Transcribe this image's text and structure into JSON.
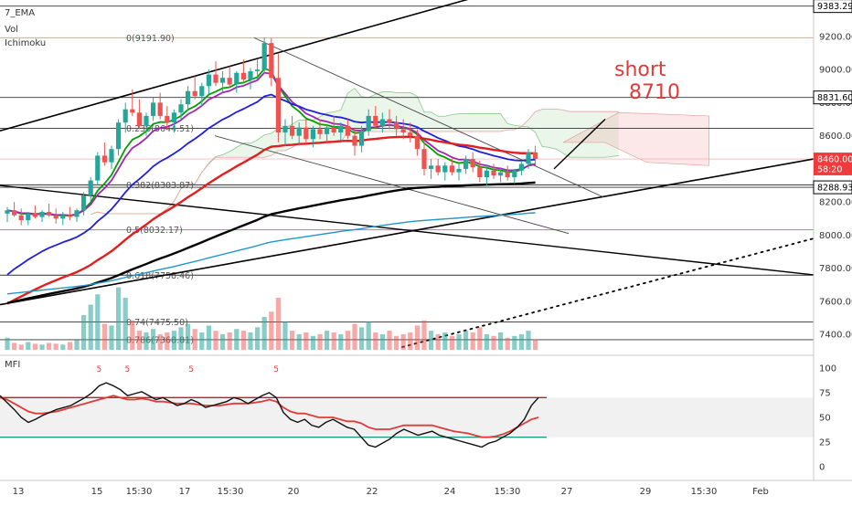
{
  "legend": [
    "7_EMA",
    "Vol",
    "Ichimoku"
  ],
  "mfi_label": "MFI",
  "note": [
    "short",
    "8710"
  ],
  "colors": {
    "candle_up": "#26a69a",
    "candle_down": "#ef5350",
    "ema_fast": "#00a000",
    "ema_mid": "#9c27b0",
    "ema_blue": "#1f1fe0",
    "ema_red": "#e01f1f",
    "ema_black": "#000000",
    "ema_teal": "#2196c8",
    "fib_red": "#f28b82",
    "fib_purple": "#c36bd1",
    "note": "#e03b3b"
  },
  "chart_data": [
    {
      "type": "candlestick",
      "price_axis_ticks": [
        7400,
        7600,
        7800,
        8000,
        8200,
        8400,
        8600,
        8800,
        9000,
        9200
      ],
      "price_axis_tick_labels": [
        "7400.00",
        "7600.00",
        "7800.00",
        "8000.00",
        "8200.00",
        "8400.00",
        "8600.00",
        "8800.00",
        "9000.00",
        "9200.00"
      ],
      "ylim": [
        7280,
        9420
      ],
      "price_tags": [
        {
          "value": 9383.29,
          "label": "9383.29",
          "style": "outline"
        },
        {
          "value": 8831.6,
          "label": "8831.60",
          "style": "outline"
        },
        {
          "value": 8460.0,
          "label": "8460.00",
          "style": "red"
        },
        {
          "value": 8400.0,
          "label": "58:20",
          "style": "red"
        },
        {
          "value": 8288.93,
          "label": "8288.93",
          "style": "outline"
        }
      ],
      "time_axis_labels": [
        "13",
        "15",
        "15:30",
        "17",
        "15:30",
        "20",
        "22",
        "24",
        "15:30",
        "27",
        "29",
        "15:30",
        "Feb"
      ],
      "fib_levels": [
        {
          "ratio": "0",
          "value": 9191.9,
          "label": "0(9191.90)"
        },
        {
          "ratio": "0.236",
          "value": 8644.51,
          "label": "0.236(8644.51)"
        },
        {
          "ratio": "0.382",
          "value": 8303.87,
          "label": "0.382(8303.87)"
        },
        {
          "ratio": "0.5",
          "value": 8032.17,
          "label": "0.5(8032.17)"
        },
        {
          "ratio": "0.618",
          "value": 7758.46,
          "label": "0.618(7758.46)"
        },
        {
          "ratio": "0.74",
          "value": 7475.5,
          "label": "0.74(7475.50)"
        },
        {
          "ratio": "0.786",
          "value": 7368.81,
          "label": "0.786(7368.81)"
        }
      ],
      "candles": [
        [
          8130,
          8170,
          8080,
          8150
        ],
        [
          8150,
          8200,
          8110,
          8120
        ],
        [
          8120,
          8160,
          8060,
          8090
        ],
        [
          8090,
          8140,
          8060,
          8130
        ],
        [
          8130,
          8180,
          8100,
          8110
        ],
        [
          8110,
          8150,
          8080,
          8140
        ],
        [
          8140,
          8190,
          8110,
          8120
        ],
        [
          8120,
          8160,
          8070,
          8100
        ],
        [
          8100,
          8140,
          8060,
          8120
        ],
        [
          8120,
          8170,
          8090,
          8110
        ],
        [
          8110,
          8160,
          8080,
          8150
        ],
        [
          8150,
          8260,
          8120,
          8240
        ],
        [
          8240,
          8350,
          8200,
          8330
        ],
        [
          8330,
          8500,
          8300,
          8480
        ],
        [
          8480,
          8560,
          8420,
          8440
        ],
        [
          8440,
          8540,
          8400,
          8520
        ],
        [
          8520,
          8700,
          8480,
          8680
        ],
        [
          8680,
          8800,
          8620,
          8760
        ],
        [
          8760,
          8880,
          8720,
          8740
        ],
        [
          8740,
          8820,
          8640,
          8660
        ],
        [
          8660,
          8740,
          8600,
          8720
        ],
        [
          8720,
          8830,
          8690,
          8800
        ],
        [
          8800,
          8860,
          8700,
          8720
        ],
        [
          8720,
          8780,
          8640,
          8680
        ],
        [
          8680,
          8760,
          8620,
          8740
        ],
        [
          8740,
          8820,
          8700,
          8790
        ],
        [
          8790,
          8900,
          8750,
          8870
        ],
        [
          8870,
          8960,
          8820,
          8840
        ],
        [
          8840,
          8920,
          8780,
          8900
        ],
        [
          8900,
          9000,
          8850,
          8970
        ],
        [
          8970,
          9050,
          8900,
          8920
        ],
        [
          8920,
          8990,
          8860,
          8950
        ],
        [
          8950,
          9020,
          8890,
          8910
        ],
        [
          8910,
          8990,
          8860,
          8980
        ],
        [
          8980,
          9060,
          8930,
          8940
        ],
        [
          8940,
          9010,
          8880,
          8990
        ],
        [
          8990,
          9060,
          8940,
          9000
        ],
        [
          9000,
          9191.9,
          8980,
          9160
        ],
        [
          9160,
          9190,
          8900,
          8950
        ],
        [
          8950,
          9100,
          8560,
          8620
        ],
        [
          8620,
          8700,
          8540,
          8660
        ],
        [
          8660,
          8720,
          8580,
          8600
        ],
        [
          8600,
          8680,
          8540,
          8650
        ],
        [
          8650,
          8700,
          8560,
          8580
        ],
        [
          8580,
          8660,
          8530,
          8640
        ],
        [
          8640,
          8700,
          8580,
          8610
        ],
        [
          8610,
          8670,
          8560,
          8650
        ],
        [
          8650,
          8720,
          8600,
          8620
        ],
        [
          8620,
          8680,
          8570,
          8660
        ],
        [
          8660,
          8700,
          8580,
          8600
        ],
        [
          8600,
          8650,
          8480,
          8540
        ],
        [
          8540,
          8660,
          8500,
          8630
        ],
        [
          8630,
          8760,
          8600,
          8720
        ],
        [
          8720,
          8780,
          8640,
          8660
        ],
        [
          8660,
          8740,
          8620,
          8700
        ],
        [
          8700,
          8760,
          8640,
          8680
        ],
        [
          8680,
          8720,
          8600,
          8640
        ],
        [
          8640,
          8700,
          8580,
          8620
        ],
        [
          8620,
          8680,
          8560,
          8600
        ],
        [
          8600,
          8640,
          8480,
          8520
        ],
        [
          8520,
          8560,
          8360,
          8400
        ],
        [
          8400,
          8460,
          8340,
          8420
        ],
        [
          8420,
          8460,
          8360,
          8380
        ],
        [
          8380,
          8440,
          8330,
          8420
        ],
        [
          8420,
          8460,
          8360,
          8380
        ],
        [
          8380,
          8430,
          8330,
          8400
        ],
        [
          8400,
          8480,
          8370,
          8460
        ],
        [
          8460,
          8500,
          8380,
          8410
        ],
        [
          8410,
          8450,
          8320,
          8350
        ],
        [
          8350,
          8420,
          8300,
          8390
        ],
        [
          8390,
          8430,
          8340,
          8360
        ],
        [
          8360,
          8410,
          8320,
          8380
        ],
        [
          8380,
          8420,
          8330,
          8350
        ],
        [
          8350,
          8400,
          8310,
          8390
        ],
        [
          8390,
          8450,
          8360,
          8430
        ],
        [
          8430,
          8520,
          8400,
          8500
        ],
        [
          8500,
          8540,
          8420,
          8460
        ]
      ],
      "volumes": [
        14,
        8,
        6,
        9,
        7,
        6,
        8,
        7,
        6,
        9,
        11,
        40,
        52,
        64,
        30,
        28,
        72,
        60,
        34,
        22,
        20,
        24,
        18,
        20,
        22,
        26,
        30,
        24,
        20,
        28,
        22,
        18,
        20,
        24,
        22,
        20,
        26,
        38,
        44,
        60,
        32,
        22,
        18,
        20,
        16,
        18,
        22,
        20,
        18,
        22,
        30,
        26,
        32,
        20,
        18,
        22,
        16,
        18,
        20,
        28,
        34,
        22,
        18,
        20,
        16,
        18,
        22,
        20,
        26,
        18,
        16,
        20,
        14,
        16,
        18,
        22,
        12
      ],
      "volume_colors_up_down": "matches candle direction"
    },
    {
      "type": "line",
      "name": "MFI",
      "y_axis_ticks": [
        0,
        25,
        50,
        75,
        100
      ],
      "ylim": [
        -10,
        110
      ],
      "band": [
        30,
        70
      ],
      "mfi": [
        72,
        65,
        58,
        50,
        45,
        48,
        52,
        55,
        58,
        60,
        62,
        66,
        70,
        75,
        82,
        85,
        82,
        78,
        72,
        74,
        76,
        72,
        68,
        70,
        66,
        62,
        64,
        68,
        65,
        60,
        62,
        64,
        66,
        70,
        68,
        64,
        68,
        72,
        75,
        70,
        55,
        48,
        45,
        48,
        42,
        40,
        45,
        48,
        44,
        40,
        38,
        30,
        22,
        20,
        24,
        28,
        34,
        38,
        35,
        32,
        34,
        36,
        32,
        30,
        28,
        26,
        24,
        22,
        20,
        24,
        26,
        30,
        34,
        40,
        48,
        62,
        70
      ],
      "signal": [
        70,
        68,
        64,
        60,
        56,
        54,
        54,
        55,
        56,
        58,
        60,
        62,
        64,
        66,
        68,
        70,
        72,
        70,
        68,
        68,
        69,
        68,
        66,
        66,
        65,
        64,
        64,
        64,
        63,
        62,
        62,
        62,
        63,
        64,
        64,
        64,
        65,
        66,
        68,
        66,
        60,
        56,
        54,
        54,
        52,
        50,
        50,
        50,
        48,
        46,
        46,
        44,
        40,
        38,
        38,
        38,
        40,
        42,
        42,
        42,
        42,
        42,
        40,
        38,
        36,
        35,
        34,
        32,
        30,
        30,
        31,
        33,
        36,
        40,
        44,
        48,
        50
      ],
      "markers": [
        {
          "index": 14,
          "label": "5"
        },
        {
          "index": 18,
          "label": "5"
        },
        {
          "index": 27,
          "label": "5"
        },
        {
          "index": 39,
          "label": "5"
        }
      ]
    }
  ]
}
